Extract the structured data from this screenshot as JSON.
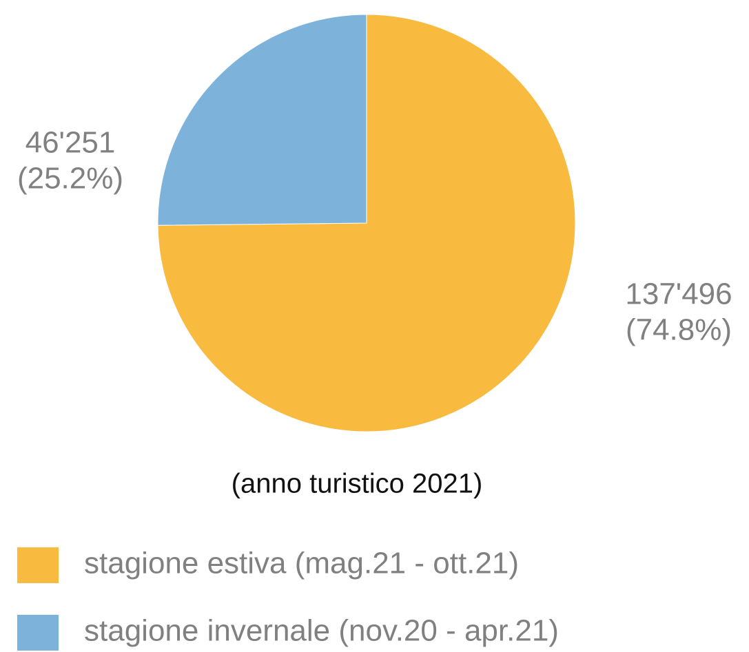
{
  "chart_data": {
    "type": "pie",
    "subtitle": "(anno turistico 2021)",
    "categories": [
      "stagione estiva (mag.21 - ott.21)",
      "stagione invernale (nov.20 - apr.21)"
    ],
    "values": [
      137496,
      46251
    ],
    "value_labels": [
      "137'496",
      "46'251"
    ],
    "percentage_labels": [
      "(74.8%)",
      "(25.2%)"
    ],
    "colors": [
      "#f8bb40",
      "#7db3da"
    ],
    "legend": "lower left"
  }
}
